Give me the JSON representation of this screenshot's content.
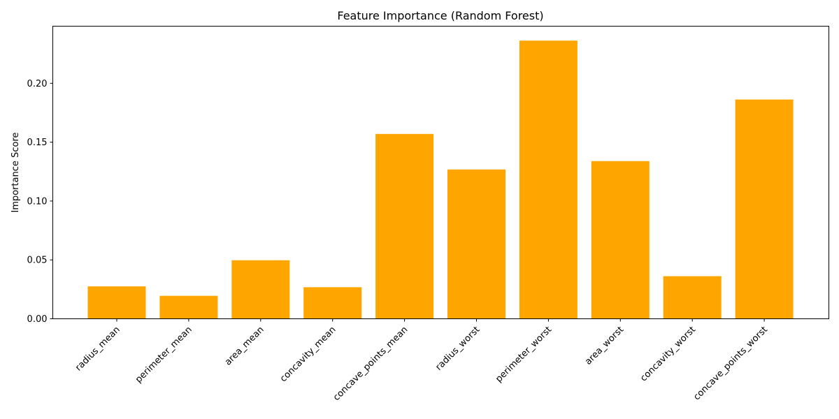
{
  "chart_data": {
    "type": "bar",
    "title": "Feature Importance (Random Forest)",
    "xlabel": "",
    "ylabel": "Importance Score",
    "categories": [
      "radius_mean",
      "perimeter_mean",
      "area_mean",
      "concavity_mean",
      "concave_points_mean",
      "radius_worst",
      "perimeter_worst",
      "area_worst",
      "concavity_worst",
      "concave_points_worst"
    ],
    "values": [
      0.0275,
      0.0195,
      0.0497,
      0.0268,
      0.157,
      0.1268,
      0.2362,
      0.1339,
      0.0362,
      0.1862
    ],
    "ylim": [
      0,
      0.2485
    ],
    "yticks": [
      0.0,
      0.05,
      0.1,
      0.15,
      0.2
    ],
    "ytick_labels": [
      "0.00",
      "0.05",
      "0.10",
      "0.15",
      "0.20"
    ],
    "bar_color": "#ffa500",
    "grid": false,
    "xtick_rotation_deg": 45
  }
}
